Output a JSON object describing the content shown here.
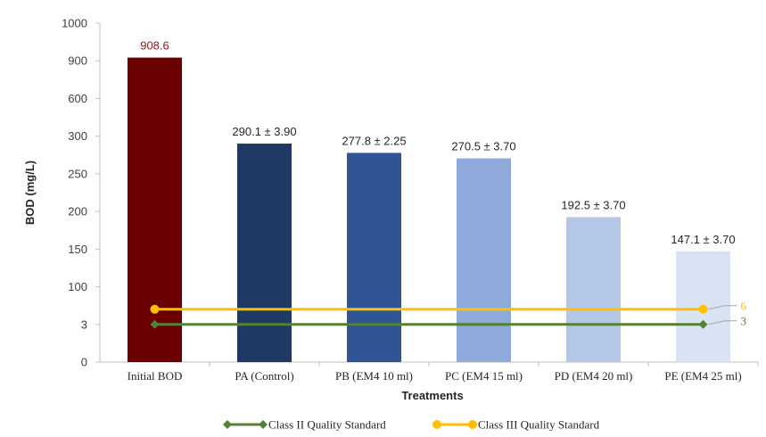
{
  "chart_data": {
    "type": "bar",
    "xlabel": "Treatments",
    "ylabel": "BOD (mg/L)",
    "y_ticks": [
      "0",
      "3",
      "100",
      "150",
      "200",
      "250",
      "300",
      "600",
      "900",
      "1000"
    ],
    "categories": [
      "Initial BOD",
      "PA (Control)",
      "PB (EM4 10 ml)",
      "PC (EM4 15 ml)",
      "PD (EM4 20 ml)",
      "PE (EM4 25 ml)"
    ],
    "values": [
      908.6,
      290.1,
      277.8,
      270.5,
      192.5,
      147.1
    ],
    "data_labels": [
      "908.6",
      "290.1 ± 3.90",
      "277.8 ± 2.25",
      "270.5 ± 3.70",
      "192.5 ± 3.70",
      "147.1 ± 3.70"
    ],
    "bar_colors": [
      "#6b0000",
      "#1f3864",
      "#2f5597",
      "#8eaadb",
      "#b4c7e7",
      "#dae3f3"
    ],
    "data_label_colors": [
      "#8b1a1a",
      "#262626",
      "#262626",
      "#262626",
      "#262626",
      "#262626"
    ],
    "series_lines": [
      {
        "name": "Class II Quality Standard",
        "value": 3,
        "end_label": "3",
        "color": "#548235",
        "marker": "diamond"
      },
      {
        "name": "Class III Quality Standard",
        "value": 6,
        "end_label": "6",
        "color": "#ffc000",
        "marker": "circle"
      }
    ],
    "legend_position": "bottom",
    "grid": false
  }
}
